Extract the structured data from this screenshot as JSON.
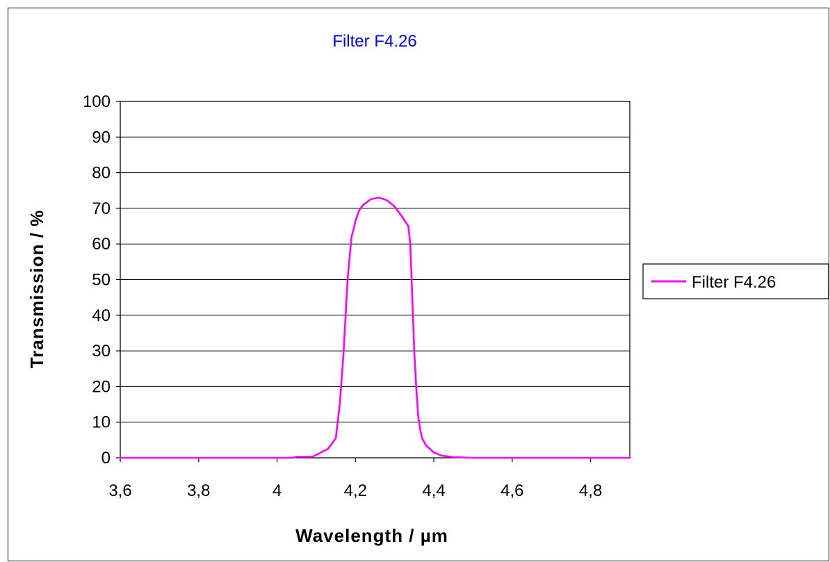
{
  "chart_data": {
    "type": "line",
    "title": "Filter F4.26",
    "xlabel": "Wavelength / µm",
    "ylabel": "Transmission / %",
    "xlim": [
      3.6,
      4.9
    ],
    "ylim": [
      0,
      100
    ],
    "x_ticks": [
      "3,6",
      "3,8",
      "4",
      "4,2",
      "4,4",
      "4,6",
      "4,8"
    ],
    "x_tick_values": [
      3.6,
      3.8,
      4.0,
      4.2,
      4.4,
      4.6,
      4.8
    ],
    "y_ticks": [
      "0",
      "10",
      "20",
      "30",
      "40",
      "50",
      "60",
      "70",
      "80",
      "90",
      "100"
    ],
    "y_tick_values": [
      0,
      10,
      20,
      30,
      40,
      50,
      60,
      70,
      80,
      90,
      100
    ],
    "grid": "horizontal",
    "legend_position": "right",
    "colors": {
      "title": "#0000ff",
      "series": "#ff00ff",
      "grid": "#000000"
    },
    "series": [
      {
        "name": "Filter F4.26",
        "x": [
          3.6,
          4.0,
          4.04,
          4.05,
          4.09,
          4.1,
          4.13,
          4.15,
          4.16,
          4.17,
          4.175,
          4.18,
          4.185,
          4.19,
          4.195,
          4.2,
          4.21,
          4.22,
          4.24,
          4.26,
          4.28,
          4.3,
          4.32,
          4.335,
          4.34,
          4.345,
          4.35,
          4.355,
          4.36,
          4.365,
          4.37,
          4.38,
          4.4,
          4.42,
          4.45,
          4.5,
          4.9
        ],
        "y": [
          0,
          0,
          0,
          0.3,
          0.3,
          0.8,
          2.5,
          5.5,
          15,
          30,
          40,
          50,
          56,
          62,
          64,
          66.5,
          69.5,
          71,
          72.6,
          73,
          72.3,
          70.5,
          67.5,
          65,
          60,
          45,
          30,
          20,
          12,
          8,
          5.5,
          3.5,
          1.5,
          0.6,
          0.2,
          0,
          0
        ]
      }
    ]
  }
}
